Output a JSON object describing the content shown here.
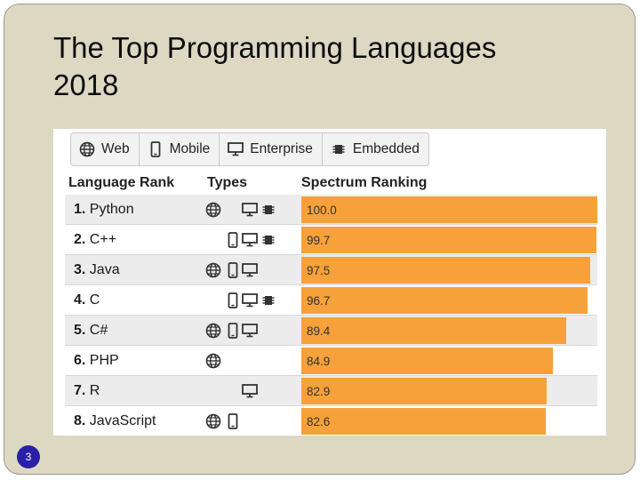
{
  "slide": {
    "title_line1": "The Top Programming Languages",
    "title_line2": "2018",
    "page_number": "3"
  },
  "tabs": [
    {
      "label": "Web",
      "icon": "globe-icon"
    },
    {
      "label": "Mobile",
      "icon": "phone-icon"
    },
    {
      "label": "Enterprise",
      "icon": "monitor-icon"
    },
    {
      "label": "Embedded",
      "icon": "chip-icon"
    }
  ],
  "headers": {
    "language_rank": "Language Rank",
    "types": "Types",
    "spectrum_ranking": "Spectrum Ranking"
  },
  "colors": {
    "bar": "#f7a13a",
    "slide_bg": "#ddd8c2",
    "page_badge": "#2a20a8"
  },
  "chart_data": {
    "type": "bar",
    "orientation": "horizontal",
    "categories": [
      "Python",
      "C++",
      "Java",
      "C",
      "C#",
      "PHP",
      "R",
      "JavaScript"
    ],
    "ranks": [
      "1.",
      "2.",
      "3.",
      "4.",
      "5.",
      "6.",
      "7.",
      "8."
    ],
    "values": [
      100.0,
      99.7,
      97.5,
      96.7,
      89.4,
      84.9,
      82.9,
      82.6
    ],
    "value_labels": [
      "100.0",
      "99.7",
      "97.5",
      "96.7",
      "89.4",
      "84.9",
      "82.9",
      "82.6"
    ],
    "types": [
      [
        "web",
        "enterprise",
        "embedded"
      ],
      [
        "mobile",
        "enterprise",
        "embedded"
      ],
      [
        "web",
        "mobile",
        "enterprise"
      ],
      [
        "mobile",
        "enterprise",
        "embedded"
      ],
      [
        "web",
        "mobile",
        "enterprise"
      ],
      [
        "web"
      ],
      [
        "enterprise"
      ],
      [
        "web",
        "mobile"
      ]
    ],
    "xlim": [
      0,
      100
    ],
    "title": "The Top Programming Languages 2018"
  }
}
